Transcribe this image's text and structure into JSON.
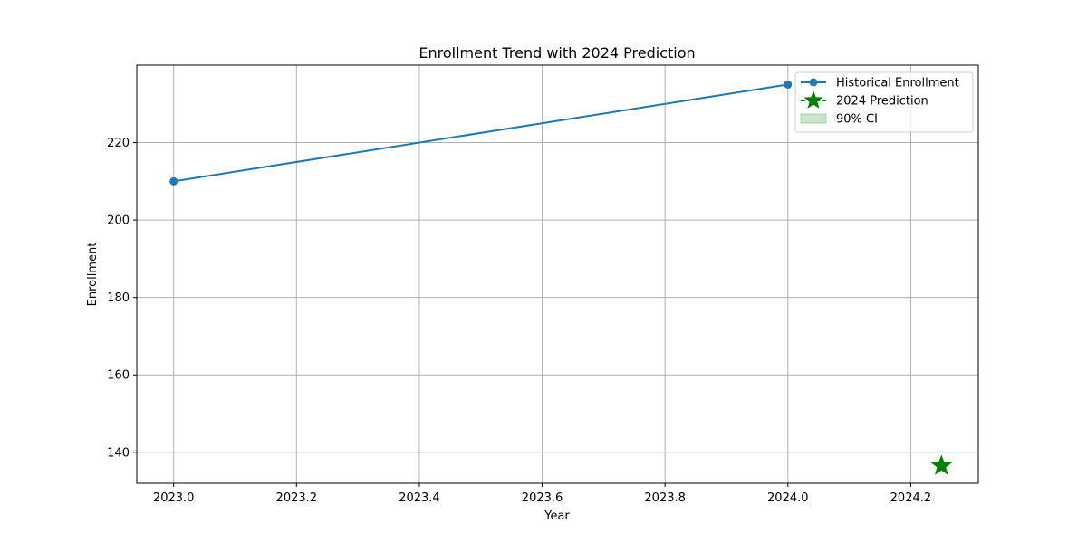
{
  "chart_data": {
    "type": "line",
    "title": "Enrollment Trend with 2024 Prediction",
    "xlabel": "Year",
    "ylabel": "Enrollment",
    "xlim": [
      2022.94,
      2024.31
    ],
    "ylim": [
      132,
      240
    ],
    "x_ticks": [
      "2023.0",
      "2023.2",
      "2023.4",
      "2023.6",
      "2023.8",
      "2024.0",
      "2024.2"
    ],
    "x_tick_values": [
      2023.0,
      2023.2,
      2023.4,
      2023.6,
      2023.8,
      2024.0,
      2024.2
    ],
    "y_ticks": [
      "140",
      "160",
      "180",
      "200",
      "220"
    ],
    "y_tick_values": [
      140,
      160,
      180,
      200,
      220
    ],
    "grid": true,
    "legend_position": "top-right",
    "series": [
      {
        "name": "Historical Enrollment",
        "kind": "line-marker",
        "color": "#1f77b4",
        "x": [
          2023.0,
          2024.0
        ],
        "y": [
          210,
          235
        ]
      },
      {
        "name": "2024 Prediction",
        "kind": "star-marker",
        "color": "#008000",
        "x": [
          2024.25
        ],
        "y": [
          136.5
        ]
      },
      {
        "name": "90% CI",
        "kind": "band",
        "color": "#2ca02c"
      }
    ]
  }
}
